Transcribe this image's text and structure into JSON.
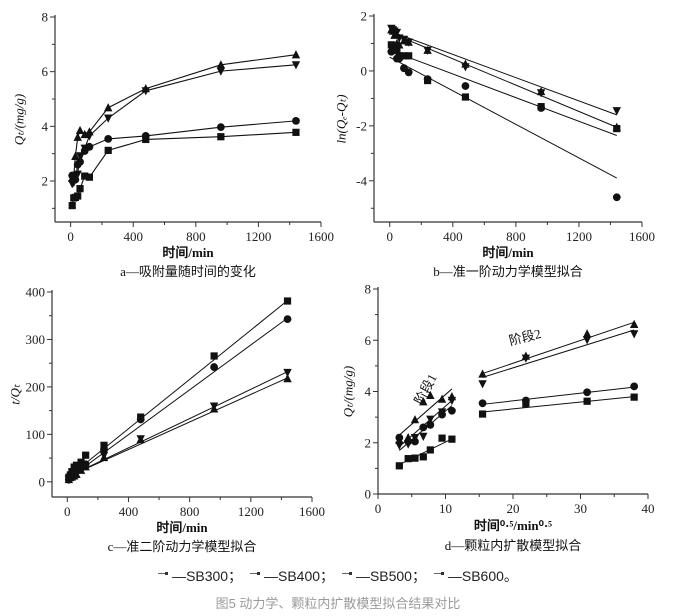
{
  "chart_data": [
    {
      "id": "a",
      "type": "line",
      "xlabel": "时间/min",
      "ylabel": "Qₜ/(mg/g)",
      "caption": "a—吸附量随时间的变化",
      "xlim": [
        -100,
        1600
      ],
      "ylim": [
        0.5,
        8
      ],
      "xticks": [
        0,
        400,
        800,
        1200,
        1600
      ],
      "yticks": [
        2,
        4,
        6,
        8
      ],
      "connected": true,
      "series": [
        {
          "name": "SB300",
          "marker": "square",
          "x": [
            10,
            20,
            30,
            45,
            60,
            90,
            120,
            240,
            480,
            960,
            1440
          ],
          "y": [
            1.1,
            1.38,
            1.4,
            1.45,
            1.72,
            2.18,
            2.14,
            3.12,
            3.52,
            3.62,
            3.78
          ]
        },
        {
          "name": "SB400",
          "marker": "circle",
          "x": [
            10,
            20,
            30,
            45,
            60,
            90,
            120,
            240,
            480,
            960,
            1440
          ],
          "y": [
            2.2,
            2.05,
            2.05,
            2.6,
            2.7,
            3.1,
            3.25,
            3.54,
            3.65,
            3.97,
            4.2
          ]
        },
        {
          "name": "SB500",
          "marker": "triangle-up",
          "x": [
            10,
            20,
            30,
            45,
            60,
            90,
            120,
            240,
            480,
            960,
            1440
          ],
          "y": [
            2.1,
            2.2,
            2.9,
            3.6,
            3.85,
            3.7,
            3.8,
            4.68,
            5.38,
            6.25,
            6.62
          ]
        },
        {
          "name": "SB600",
          "marker": "triangle-down",
          "x": [
            10,
            20,
            30,
            45,
            60,
            90,
            120,
            240,
            480,
            960,
            1440
          ],
          "y": [
            1.9,
            1.95,
            2.2,
            2.25,
            2.92,
            3.2,
            3.65,
            4.3,
            5.3,
            6.02,
            6.25
          ]
        }
      ]
    },
    {
      "id": "b",
      "type": "scatter",
      "xlabel": "时间/min",
      "ylabel": "ln(Qₑ-Qₜ)",
      "caption": "b—准一阶动力学模型拟合",
      "xlim": [
        -100,
        1600
      ],
      "ylim": [
        -5.5,
        2
      ],
      "xticks": [
        0,
        400,
        800,
        1200,
        1600
      ],
      "yticks": [
        -4,
        -2,
        0,
        2
      ],
      "series": [
        {
          "name": "SB300",
          "marker": "square",
          "x": [
            10,
            20,
            30,
            45,
            60,
            90,
            120,
            240,
            480,
            960,
            1440
          ],
          "y": [
            0.95,
            0.8,
            0.75,
            0.75,
            0.55,
            0.55,
            0.55,
            -0.35,
            -0.95,
            -1.3,
            -2.1
          ],
          "fit": [
            [
              0,
              0.75
            ],
            [
              1440,
              -2.35
            ]
          ]
        },
        {
          "name": "SB400",
          "marker": "circle",
          "x": [
            10,
            20,
            30,
            45,
            60,
            90,
            120,
            240,
            480,
            960,
            1440
          ],
          "y": [
            0.7,
            0.85,
            0.8,
            0.45,
            0.45,
            0.1,
            -0.05,
            -0.3,
            -0.55,
            -1.35,
            -4.6
          ],
          "fit": [
            [
              0,
              0.5
            ],
            [
              1440,
              -3.9
            ]
          ]
        },
        {
          "name": "SB500",
          "marker": "triangle-up",
          "x": [
            10,
            20,
            30,
            45,
            60,
            90,
            120,
            240,
            480,
            960,
            1440
          ],
          "y": [
            1.5,
            1.45,
            1.3,
            1.0,
            0.95,
            1.1,
            1.05,
            0.75,
            0.25,
            -0.75,
            -2.05
          ],
          "fit": [
            [
              0,
              1.4
            ],
            [
              1440,
              -2.05
            ]
          ]
        },
        {
          "name": "SB600",
          "marker": "triangle-down",
          "x": [
            10,
            20,
            30,
            45,
            60,
            90,
            120,
            240,
            480,
            960,
            1440
          ],
          "y": [
            1.55,
            1.5,
            1.45,
            1.4,
            1.2,
            1.15,
            1.05,
            0.75,
            0.15,
            -0.8,
            -1.45
          ],
          "fit": [
            [
              0,
              1.45
            ],
            [
              1440,
              -1.6
            ]
          ]
        }
      ]
    },
    {
      "id": "c",
      "type": "scatter",
      "xlabel": "时间/min",
      "ylabel": "t/Qₜ",
      "caption": "c—准二阶动力学模型拟合",
      "xlim": [
        -100,
        1600
      ],
      "ylim": [
        -32,
        400
      ],
      "xticks": [
        0,
        400,
        800,
        1200,
        1600
      ],
      "yticks": [
        0,
        100,
        200,
        300,
        400
      ],
      "series": [
        {
          "name": "SB300",
          "marker": "square",
          "x": [
            10,
            20,
            30,
            45,
            60,
            90,
            120,
            240,
            480,
            960,
            1440
          ],
          "y": [
            9.1,
            14.5,
            21.4,
            31,
            34.9,
            41.3,
            56.1,
            76.9,
            136.4,
            265.2,
            381
          ],
          "fit": [
            [
              0,
              8
            ],
            [
              1440,
              382
            ]
          ]
        },
        {
          "name": "SB400",
          "marker": "circle",
          "x": [
            10,
            20,
            30,
            45,
            60,
            90,
            120,
            240,
            480,
            960,
            1440
          ],
          "y": [
            4.5,
            9.8,
            14.6,
            17.3,
            22.2,
            29,
            36.9,
            67.8,
            131.5,
            241.8,
            342.9
          ],
          "fit": [
            [
              0,
              5
            ],
            [
              1440,
              345
            ]
          ]
        },
        {
          "name": "SB500",
          "marker": "triangle-up",
          "x": [
            10,
            20,
            30,
            45,
            60,
            90,
            120,
            240,
            480,
            960,
            1440
          ],
          "y": [
            4.8,
            9.1,
            10.3,
            12.5,
            15.6,
            24.3,
            31.6,
            51.3,
            89.2,
            153.6,
            217.5
          ],
          "fit": [
            [
              0,
              10
            ],
            [
              1440,
              219
            ]
          ]
        },
        {
          "name": "SB600",
          "marker": "triangle-down",
          "x": [
            10,
            20,
            30,
            45,
            60,
            90,
            120,
            240,
            480,
            960,
            1440
          ],
          "y": [
            5.3,
            10.3,
            13.6,
            20,
            20.5,
            28.1,
            32.9,
            55.8,
            90.6,
            159.5,
            230.4
          ],
          "fit": [
            [
              0,
              10
            ],
            [
              1440,
              232
            ]
          ]
        }
      ]
    },
    {
      "id": "d",
      "type": "scatter",
      "xlabel": "时间⁰·⁵/min⁰·⁵",
      "ylabel": "Qₜ/(mg/g)",
      "caption": "d—颗粒内扩散模型拟合",
      "xlim": [
        0,
        40
      ],
      "ylim": [
        0,
        8
      ],
      "xticks": [
        0,
        10,
        20,
        30,
        40
      ],
      "yticks": [
        0,
        2,
        4,
        6,
        8
      ],
      "annotations": [
        "阶段1",
        "阶段2"
      ],
      "series": [
        {
          "name": "SB300",
          "marker": "square",
          "x": [
            3.16,
            4.47,
            5.48,
            6.71,
            7.75,
            9.49,
            10.95,
            15.49,
            21.91,
            30.98,
            37.95
          ],
          "y": [
            1.1,
            1.38,
            1.4,
            1.45,
            1.72,
            2.18,
            2.14,
            3.12,
            3.52,
            3.62,
            3.78
          ],
          "fit": [
            [
              3.16,
              1.15
            ],
            [
              10.95,
              2.15
            ]
          ],
          "fit2": [
            [
              15.49,
              3.2
            ],
            [
              37.95,
              3.8
            ]
          ]
        },
        {
          "name": "SB400",
          "marker": "circle",
          "x": [
            3.16,
            4.47,
            5.48,
            6.71,
            7.75,
            9.49,
            10.95,
            15.49,
            21.91,
            30.98,
            37.95
          ],
          "y": [
            2.2,
            2.05,
            2.05,
            2.6,
            2.7,
            3.1,
            3.25,
            3.54,
            3.65,
            3.97,
            4.2
          ],
          "fit": [
            [
              3.16,
              1.7
            ],
            [
              10.95,
              3.45
            ]
          ],
          "fit2": [
            [
              15.49,
              3.5
            ],
            [
              37.95,
              4.17
            ]
          ]
        },
        {
          "name": "SB500",
          "marker": "triangle-up",
          "x": [
            3.16,
            4.47,
            5.48,
            6.71,
            7.75,
            9.49,
            10.95,
            15.49,
            21.91,
            30.98,
            37.95
          ],
          "y": [
            2.1,
            2.2,
            2.9,
            3.6,
            3.85,
            3.7,
            3.8,
            4.68,
            5.38,
            6.25,
            6.62
          ],
          "fit": [
            [
              3.16,
              2.3
            ],
            [
              10.95,
              4.1
            ]
          ],
          "fit2": [
            [
              15.49,
              4.7
            ],
            [
              37.95,
              6.7
            ]
          ]
        },
        {
          "name": "SB600",
          "marker": "triangle-down",
          "x": [
            3.16,
            4.47,
            5.48,
            6.71,
            7.75,
            9.49,
            10.95,
            15.49,
            21.91,
            30.98,
            37.95
          ],
          "y": [
            1.9,
            1.95,
            2.2,
            2.25,
            2.92,
            3.2,
            3.65,
            4.3,
            5.3,
            6.02,
            6.25
          ],
          "fit": [
            [
              3.16,
              1.85
            ],
            [
              10.95,
              3.65
            ]
          ],
          "fit2": [
            [
              15.49,
              4.55
            ],
            [
              37.95,
              6.4
            ]
          ]
        }
      ]
    }
  ],
  "legend": [
    {
      "marker": "square",
      "label": "—SB300；"
    },
    {
      "marker": "circle",
      "label": "—SB400；"
    },
    {
      "marker": "triangle-up",
      "label": "—SB500；"
    },
    {
      "marker": "triangle-down",
      "label": "—SB600。"
    }
  ],
  "figure_caption": "图5 动力学、颗粒内扩散模型拟合结果对比",
  "colors": {
    "ink": "#111111",
    "caption": "#9a9a9a"
  }
}
